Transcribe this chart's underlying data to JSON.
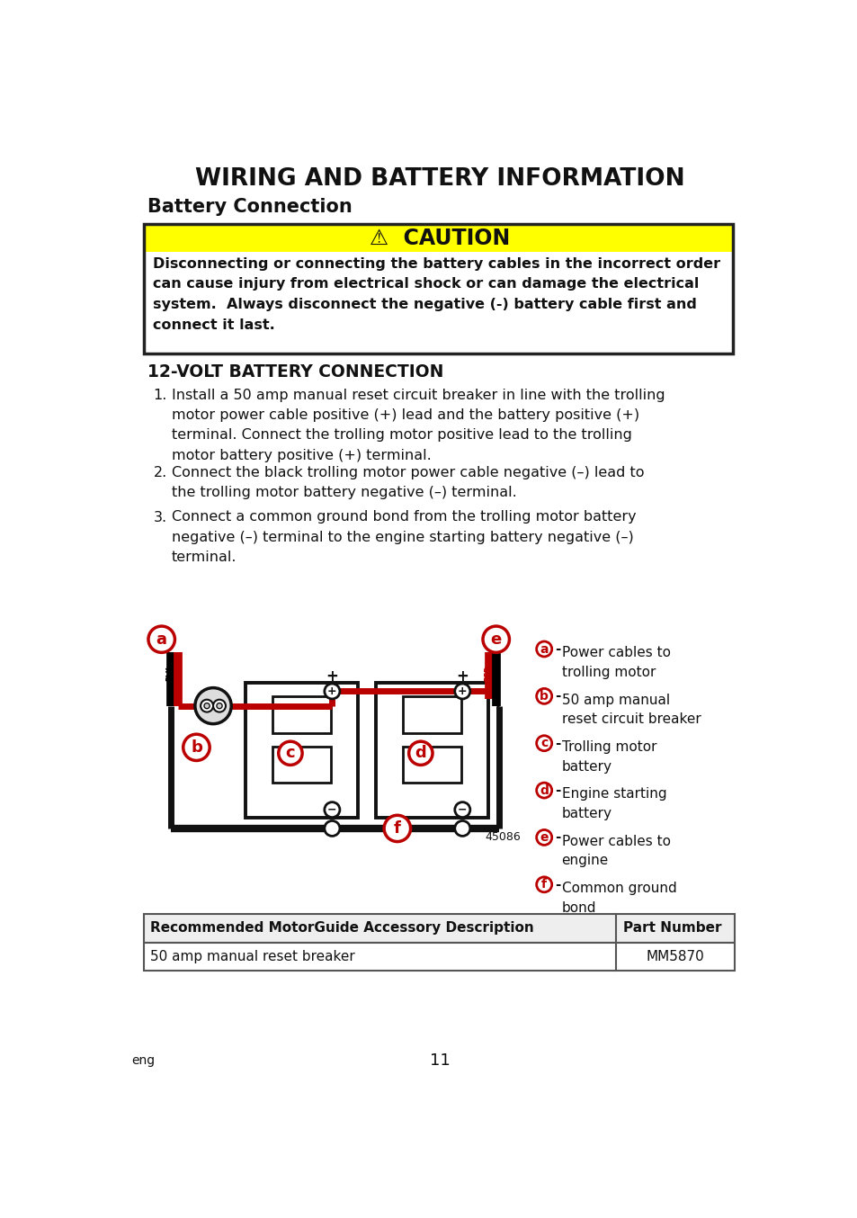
{
  "title": "WIRING AND BATTERY INFORMATION",
  "subtitle": "Battery Connection",
  "caution_title": "⚠  CAUTION",
  "caution_text": "Disconnecting or connecting the battery cables in the incorrect order\ncan cause injury from electrical shock or can damage the electrical\nsystem.  Always disconnect the negative (-) battery cable first and\nconnect it last.",
  "section_title": "12-VOLT BATTERY CONNECTION",
  "steps": [
    "Install a 50 amp manual reset circuit breaker in line with the trolling\nmotor power cable positive (+) lead and the battery positive (+)\nterminal. Connect the trolling motor positive lead to the trolling\nmotor battery positive (+) terminal.",
    "Connect the black trolling motor power cable negative (–) lead to\nthe trolling motor battery negative (–) terminal.",
    "Connect a common ground bond from the trolling motor battery\nnegative (–) terminal to the engine starting battery negative (–)\nterminal."
  ],
  "legend": [
    [
      "a",
      "Power cables to\ntrolling motor"
    ],
    [
      "b",
      "50 amp manual\nreset circuit breaker"
    ],
    [
      "c",
      "Trolling motor\nbattery"
    ],
    [
      "d",
      "Engine starting\nbattery"
    ],
    [
      "e",
      "Power cables to\nengine"
    ],
    [
      "f",
      "Common ground\nbond"
    ]
  ],
  "table_header": [
    "Recommended MotorGuide Accessory Description",
    "Part Number"
  ],
  "table_row": [
    "50 amp manual reset breaker",
    "MM5870"
  ],
  "page_number": "11",
  "page_lang": "eng",
  "bg_color": "#ffffff",
  "caution_bg": "#ffff00",
  "red_color": "#bb0000",
  "dark_color": "#111111"
}
